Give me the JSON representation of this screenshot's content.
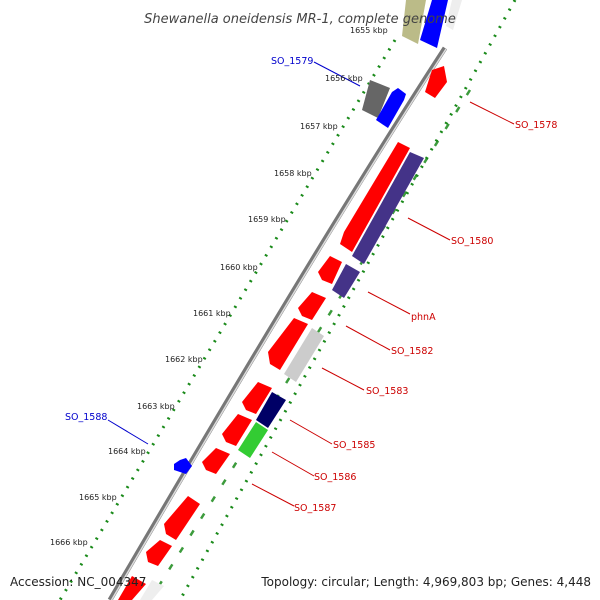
{
  "title": "Shewanella oneidensis MR-1, complete genome",
  "footer": {
    "accession": "Accession: NC_004347",
    "summary": "Topology: circular; Length: 4,969,803 bp; Genes: 4,448"
  },
  "colors": {
    "label_forward": "#0000cc",
    "label_reverse": "#cc0000",
    "backbone": "#888888",
    "tick_green": "#1a8a1a",
    "feature_red": "#ff0000",
    "feature_blue": "#0000ff",
    "feature_purple": "#443388",
    "feature_navy": "#000066",
    "feature_green": "#33cc33",
    "feature_gray": "#666666",
    "feature_lightgray": "#cccccc",
    "feature_olive": "#bbbb88"
  },
  "scale_ticks": [
    "1655 kbp",
    "1656 kbp",
    "1657 kbp",
    "1658 kbp",
    "1659 kbp",
    "1660 kbp",
    "1661 kbp",
    "1662 kbp",
    "1663 kbp",
    "1664 kbp",
    "1665 kbp",
    "1666 kbp"
  ],
  "gene_labels": [
    {
      "name": "SO_1579",
      "strand": "forward"
    },
    {
      "name": "SO_1588",
      "strand": "forward"
    },
    {
      "name": "SO_1578",
      "strand": "reverse"
    },
    {
      "name": "SO_1580",
      "strand": "reverse"
    },
    {
      "name": "phnA",
      "strand": "reverse"
    },
    {
      "name": "SO_1582",
      "strand": "reverse"
    },
    {
      "name": "SO_1583",
      "strand": "reverse"
    },
    {
      "name": "SO_1585",
      "strand": "reverse"
    },
    {
      "name": "SO_1586",
      "strand": "reverse"
    },
    {
      "name": "SO_1587",
      "strand": "reverse"
    }
  ]
}
